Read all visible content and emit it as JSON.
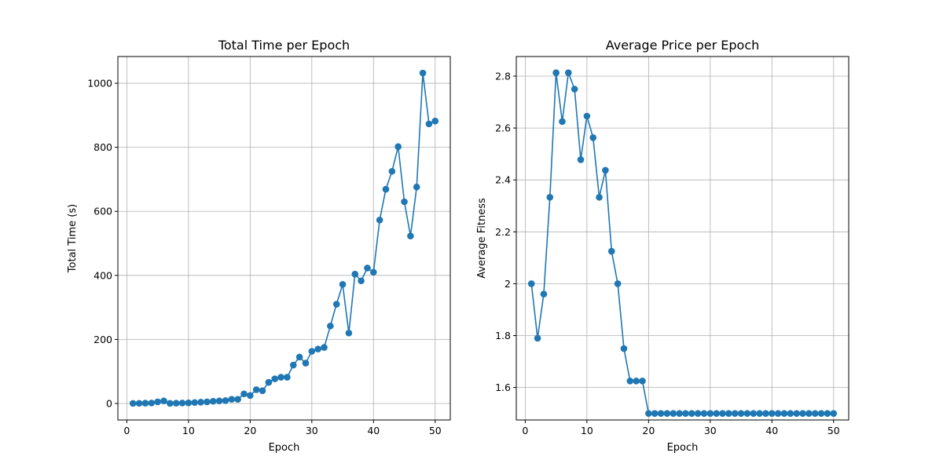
{
  "colors": {
    "series": "#1f77b4",
    "grid": "#b0b0b0"
  },
  "chart_data": [
    {
      "type": "line",
      "title": "Total Time per Epoch",
      "xlabel": "Epoch",
      "ylabel": "Total Time (s)",
      "xlim": [
        -1.45,
        52.45
      ],
      "ylim": [
        -51.5,
        1083.5
      ],
      "xticks": [
        0,
        10,
        20,
        30,
        40,
        50
      ],
      "yticks": [
        0,
        200,
        400,
        600,
        800,
        1000
      ],
      "grid": true,
      "marker": "circle",
      "series": [
        {
          "x": [
            1,
            2,
            3,
            4,
            5,
            6,
            7,
            8,
            9,
            10,
            11,
            12,
            13,
            14,
            15,
            16,
            17,
            18,
            19,
            20,
            21,
            22,
            23,
            24,
            25,
            26,
            27,
            28,
            29,
            30,
            31,
            32,
            33,
            34,
            35,
            36,
            37,
            38,
            39,
            40,
            41,
            42,
            43,
            44,
            45,
            46,
            47,
            48,
            49,
            50
          ],
          "values": [
            0.3,
            0.6,
            1.0,
            1.5,
            5,
            8,
            0.5,
            1.0,
            1.5,
            2,
            3,
            4,
            5,
            7,
            8,
            9,
            13,
            13,
            30,
            25,
            43,
            40,
            66,
            77,
            82,
            82,
            120,
            145,
            126,
            163,
            170,
            175,
            242,
            310,
            372,
            220,
            404,
            383,
            423,
            410,
            573,
            669,
            725,
            802,
            630,
            523,
            676,
            1032,
            873,
            882
          ]
        }
      ]
    },
    {
      "type": "line",
      "title": "Average Price per Epoch",
      "xlabel": "Epoch",
      "ylabel": "Average Fitness",
      "xlim": [
        -1.45,
        52.45
      ],
      "ylim": [
        1.4748,
        2.8756
      ],
      "xticks": [
        0,
        10,
        20,
        30,
        40,
        50
      ],
      "yticks": [
        1.6,
        1.8,
        2.0,
        2.2,
        2.4,
        2.6,
        2.8
      ],
      "grid": true,
      "marker": "circle",
      "series": [
        {
          "x": [
            1,
            2,
            3,
            4,
            5,
            6,
            7,
            8,
            9,
            10,
            11,
            12,
            13,
            14,
            15,
            16,
            17,
            18,
            19,
            20,
            21,
            22,
            23,
            24,
            25,
            26,
            27,
            28,
            29,
            30,
            31,
            32,
            33,
            34,
            35,
            36,
            37,
            38,
            39,
            40,
            41,
            42,
            43,
            44,
            45,
            46,
            47,
            48,
            49,
            50
          ],
          "values": [
            2.0,
            1.79,
            1.96,
            2.333,
            2.813,
            2.625,
            2.813,
            2.75,
            2.478,
            2.646,
            2.563,
            2.333,
            2.437,
            2.125,
            2.0,
            1.75,
            1.625,
            1.625,
            1.625,
            1.5,
            1.5,
            1.5,
            1.5,
            1.5,
            1.5,
            1.5,
            1.5,
            1.5,
            1.5,
            1.5,
            1.5,
            1.5,
            1.5,
            1.5,
            1.5,
            1.5,
            1.5,
            1.5,
            1.5,
            1.5,
            1.5,
            1.5,
            1.5,
            1.5,
            1.5,
            1.5,
            1.5,
            1.5,
            1.5,
            1.5
          ]
        }
      ]
    }
  ]
}
